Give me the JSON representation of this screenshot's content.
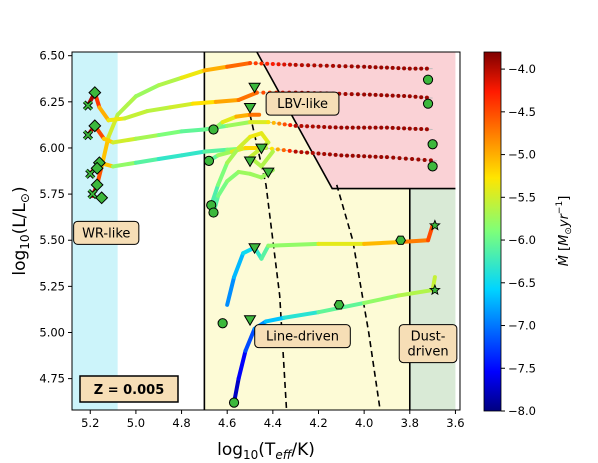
{
  "chart_data": {
    "type": "scatter",
    "xlabel": "log₁₀(T_eff/K)",
    "ylabel": "log₁₀(L/L⊙)",
    "xlim": [
      5.28,
      3.58
    ],
    "ylim": [
      4.58,
      6.52
    ],
    "x_reversed": true,
    "x_ticks": [
      5.2,
      5.0,
      4.8,
      4.6,
      4.4,
      4.2,
      4.0,
      3.8,
      3.6
    ],
    "x_tick_labels": [
      "5.2",
      "5.0",
      "4.8",
      "4.6",
      "4.4",
      "4.2",
      "4.0",
      "3.8",
      "3.6"
    ],
    "y_ticks": [
      4.75,
      5.0,
      5.25,
      5.5,
      5.75,
      6.0,
      6.25,
      6.5
    ],
    "y_tick_labels": [
      "4.75",
      "5.00",
      "5.25",
      "5.50",
      "5.75",
      "6.00",
      "6.25",
      "6.50"
    ],
    "grid": false,
    "annotation_box": "Z = 0.005",
    "colorbar": {
      "label": "Ṁ [M⊙yr⁻¹]",
      "range": [
        -8.0,
        -3.8
      ],
      "ticks": [
        -4.0,
        -4.5,
        -5.0,
        -5.5,
        -6.0,
        -6.5,
        -7.0,
        -7.5,
        -8.0
      ],
      "tick_labels": [
        "−4.0",
        "−4.5",
        "−5.0",
        "−5.5",
        "−6.0",
        "−6.5",
        "−7.0",
        "−7.5",
        "−8.0"
      ],
      "colormap": "jet"
    },
    "regions": [
      {
        "label": "WR-like",
        "x_range": [
          5.28,
          5.08
        ],
        "y_range": [
          4.58,
          6.52
        ],
        "color": "#ccf4fa"
      },
      {
        "label": "Line-driven",
        "x_range": [
          4.7,
          3.8
        ],
        "y_range": [
          4.58,
          5.78
        ],
        "color": "#fdfbd6"
      },
      {
        "label": "LBV-like",
        "x_range": [
          4.47,
          3.6
        ],
        "y_range": [
          5.78,
          6.52
        ],
        "color": "#fad2d6"
      },
      {
        "label": "Dust-driven",
        "x_range": [
          3.8,
          3.6
        ],
        "y_range": [
          4.58,
          5.78
        ],
        "color": "#d9ead6"
      }
    ],
    "region_label_text": [
      "WR-like",
      "LBV-like",
      "Line-driven",
      "Dust-\ndriven"
    ],
    "boundary_lines": [
      {
        "style": "solid",
        "points": [
          [
            4.7,
            4.58
          ],
          [
            4.7,
            6.52
          ]
        ]
      },
      {
        "style": "solid",
        "points": [
          [
            4.47,
            6.52
          ],
          [
            4.14,
            5.78
          ],
          [
            3.6,
            5.78
          ]
        ]
      },
      {
        "style": "solid",
        "points": [
          [
            3.8,
            4.58
          ],
          [
            3.8,
            5.78
          ]
        ]
      },
      {
        "style": "dashed",
        "points": [
          [
            4.5,
            6.18
          ],
          [
            4.43,
            5.8
          ],
          [
            4.37,
            5.2
          ],
          [
            4.34,
            4.58
          ]
        ]
      },
      {
        "style": "dashed",
        "points": [
          [
            4.12,
            5.8
          ],
          [
            4.05,
            5.5
          ],
          [
            3.98,
            5.0
          ],
          [
            3.93,
            4.58
          ]
        ]
      }
    ],
    "tracks": [
      {
        "points": [
          [
            5.19,
            5.74
          ],
          [
            5.17,
            5.8
          ],
          [
            5.15,
            5.9
          ],
          [
            5.12,
            6.06
          ],
          [
            5.08,
            6.18
          ],
          [
            5.0,
            6.28
          ],
          [
            4.9,
            6.34
          ],
          [
            4.8,
            6.38
          ],
          [
            4.7,
            6.42
          ],
          [
            4.6,
            6.44
          ],
          [
            4.5,
            6.46
          ]
        ],
        "mdot": [
          -4.0,
          -4.3,
          -4.8,
          -5.4,
          -5.6,
          -5.7,
          -5.8,
          -5.5,
          -5.2,
          -4.8,
          -4.5
        ]
      },
      {
        "points": [
          [
            4.5,
            6.46
          ],
          [
            4.3,
            6.45
          ],
          [
            4.0,
            6.44
          ],
          [
            3.8,
            6.43
          ],
          [
            3.7,
            6.43
          ]
        ],
        "mdot": [
          -4.5,
          -4.0,
          -3.9,
          -3.9,
          -3.9
        ],
        "dotted": true
      },
      {
        "points": [
          [
            5.21,
            6.23
          ],
          [
            5.18,
            6.3
          ],
          [
            5.16,
            6.22
          ],
          [
            5.12,
            6.15
          ],
          [
            5.05,
            6.16
          ],
          [
            4.95,
            6.2
          ],
          [
            4.85,
            6.22
          ],
          [
            4.75,
            6.24
          ],
          [
            4.65,
            6.25
          ],
          [
            4.55,
            6.26
          ],
          [
            4.47,
            6.3
          ]
        ],
        "mdot": [
          -3.9,
          -4.0,
          -4.8,
          -5.2,
          -5.5,
          -5.6,
          -5.6,
          -5.4,
          -5.1,
          -4.8,
          -4.6
        ]
      },
      {
        "points": [
          [
            4.47,
            6.3
          ],
          [
            4.3,
            6.3
          ],
          [
            4.0,
            6.29
          ],
          [
            3.8,
            6.28
          ],
          [
            3.7,
            6.27
          ]
        ],
        "mdot": [
          -4.6,
          -4.0,
          -3.9,
          -3.9,
          -3.9
        ],
        "dotted": true
      },
      {
        "points": [
          [
            5.21,
            6.07
          ],
          [
            5.18,
            6.12
          ],
          [
            5.14,
            6.05
          ],
          [
            5.1,
            6.03
          ],
          [
            5.0,
            6.05
          ],
          [
            4.9,
            6.07
          ],
          [
            4.8,
            6.09
          ],
          [
            4.7,
            6.1
          ],
          [
            4.6,
            6.12
          ],
          [
            4.5,
            6.14
          ],
          [
            4.42,
            6.14
          ]
        ],
        "mdot": [
          -3.9,
          -4.1,
          -4.9,
          -5.4,
          -5.6,
          -5.8,
          -6.0,
          -6.1,
          -5.9,
          -5.6,
          -5.3
        ]
      },
      {
        "points": [
          [
            4.42,
            6.14
          ],
          [
            4.3,
            6.12
          ],
          [
            4.1,
            6.11
          ],
          [
            3.9,
            6.11
          ],
          [
            3.7,
            6.1
          ]
        ],
        "mdot": [
          -5.3,
          -4.0,
          -3.9,
          -3.9,
          -3.9
        ],
        "dotted": true
      },
      {
        "points": [
          [
            5.2,
            5.86
          ],
          [
            5.16,
            5.92
          ],
          [
            5.1,
            5.9
          ],
          [
            5.0,
            5.92
          ],
          [
            4.9,
            5.94
          ],
          [
            4.8,
            5.96
          ],
          [
            4.7,
            5.98
          ],
          [
            4.6,
            5.99
          ],
          [
            4.5,
            6.0
          ],
          [
            4.43,
            6.0
          ]
        ],
        "mdot": [
          -4.0,
          -4.6,
          -5.6,
          -6.0,
          -6.2,
          -6.4,
          -6.2,
          -6.0,
          -5.8,
          -5.6
        ]
      },
      {
        "points": [
          [
            4.43,
            6.0
          ],
          [
            4.3,
            5.98
          ],
          [
            4.1,
            5.96
          ],
          [
            3.9,
            5.95
          ],
          [
            3.68,
            5.93
          ]
        ],
        "mdot": [
          -5.6,
          -4.0,
          -3.9,
          -3.9,
          -3.9
        ],
        "dotted": true
      },
      {
        "points": [
          [
            4.66,
            6.1
          ],
          [
            4.62,
            6.14
          ],
          [
            4.56,
            6.17
          ],
          [
            4.5,
            6.18
          ],
          [
            4.46,
            6.18
          ]
        ],
        "mdot": [
          -6.0,
          -5.6,
          -5.2,
          -4.8,
          -4.6
        ]
      },
      {
        "points": [
          [
            4.68,
            5.93
          ],
          [
            4.64,
            5.96
          ],
          [
            4.58,
            5.98
          ],
          [
            4.52,
            6.0
          ],
          [
            4.46,
            6.0
          ]
        ],
        "mdot": [
          -6.2,
          -5.9,
          -5.6,
          -5.3,
          -5.1
        ]
      },
      {
        "points": [
          [
            4.67,
            5.69
          ],
          [
            4.64,
            5.8
          ],
          [
            4.6,
            5.92
          ],
          [
            4.55,
            6.0
          ],
          [
            4.5,
            6.06
          ],
          [
            4.45,
            6.08
          ],
          [
            4.42,
            6.03
          ],
          [
            4.5,
            5.95
          ],
          [
            4.45,
            5.9
          ],
          [
            4.4,
            5.98
          ]
        ],
        "mdot": [
          -6.3,
          -6.0,
          -5.8,
          -5.6,
          -5.4,
          -5.3,
          -5.5,
          -5.6,
          -5.7,
          -5.6
        ]
      },
      {
        "points": [
          [
            4.66,
            5.65
          ],
          [
            4.64,
            5.74
          ],
          [
            4.6,
            5.82
          ],
          [
            4.55,
            5.87
          ],
          [
            4.5,
            5.86
          ],
          [
            4.45,
            5.84
          ],
          [
            4.4,
            5.88
          ]
        ],
        "mdot": [
          -6.2,
          -6.0,
          -5.9,
          -5.8,
          -5.7,
          -5.8,
          -5.7
        ]
      },
      {
        "points": [
          [
            4.6,
            5.15
          ],
          [
            4.57,
            5.3
          ],
          [
            4.53,
            5.43
          ],
          [
            4.48,
            5.46
          ],
          [
            4.45,
            5.4
          ],
          [
            4.42,
            5.47
          ],
          [
            4.2,
            5.48
          ],
          [
            4.0,
            5.48
          ],
          [
            3.85,
            5.49
          ],
          [
            3.72,
            5.5
          ],
          [
            3.7,
            5.58
          ]
        ],
        "mdot": [
          -7.0,
          -6.8,
          -6.6,
          -6.4,
          -6.2,
          -6.0,
          -5.6,
          -5.2,
          -4.9,
          -4.6,
          -4.4
        ]
      },
      {
        "points": [
          [
            4.57,
            4.62
          ],
          [
            4.55,
            4.75
          ],
          [
            4.52,
            4.9
          ],
          [
            4.48,
            5.02
          ],
          [
            4.43,
            5.06
          ],
          [
            4.35,
            5.08
          ],
          [
            4.2,
            5.11
          ],
          [
            4.0,
            5.16
          ],
          [
            3.85,
            5.2
          ],
          [
            3.7,
            5.23
          ],
          [
            3.69,
            5.3
          ]
        ],
        "mdot": [
          -7.8,
          -7.7,
          -7.4,
          -7.0,
          -6.8,
          -6.5,
          -6.2,
          -5.9,
          -5.7,
          -5.6,
          -5.5
        ]
      }
    ],
    "markers": [
      {
        "shape": "x",
        "points": [
          [
            5.21,
            6.23
          ],
          [
            5.21,
            6.07
          ],
          [
            5.2,
            5.86
          ],
          [
            5.19,
            5.75
          ]
        ]
      },
      {
        "shape": "diamond",
        "points": [
          [
            5.18,
            6.3
          ],
          [
            5.18,
            6.12
          ],
          [
            5.16,
            5.92
          ],
          [
            5.17,
            5.89
          ],
          [
            5.17,
            5.8
          ],
          [
            5.15,
            5.73
          ]
        ]
      },
      {
        "shape": "triangle-down",
        "points": [
          [
            4.48,
            6.33
          ],
          [
            4.5,
            6.22
          ],
          [
            4.45,
            6.0
          ],
          [
            4.5,
            5.93
          ],
          [
            4.42,
            5.87
          ],
          [
            4.48,
            5.46
          ],
          [
            4.5,
            5.07
          ]
        ]
      },
      {
        "shape": "circle",
        "points": [
          [
            4.66,
            6.1
          ],
          [
            4.68,
            5.93
          ],
          [
            4.67,
            5.69
          ],
          [
            4.66,
            5.65
          ],
          [
            4.62,
            5.05
          ],
          [
            4.57,
            4.62
          ],
          [
            3.72,
            6.37
          ],
          [
            3.72,
            6.24
          ],
          [
            3.7,
            6.02
          ],
          [
            3.7,
            5.9
          ]
        ]
      },
      {
        "shape": "hexagon",
        "points": [
          [
            3.84,
            5.5
          ],
          [
            4.11,
            5.15
          ]
        ]
      },
      {
        "shape": "star",
        "points": [
          [
            3.69,
            5.58
          ],
          [
            3.69,
            5.23
          ]
        ]
      }
    ]
  }
}
